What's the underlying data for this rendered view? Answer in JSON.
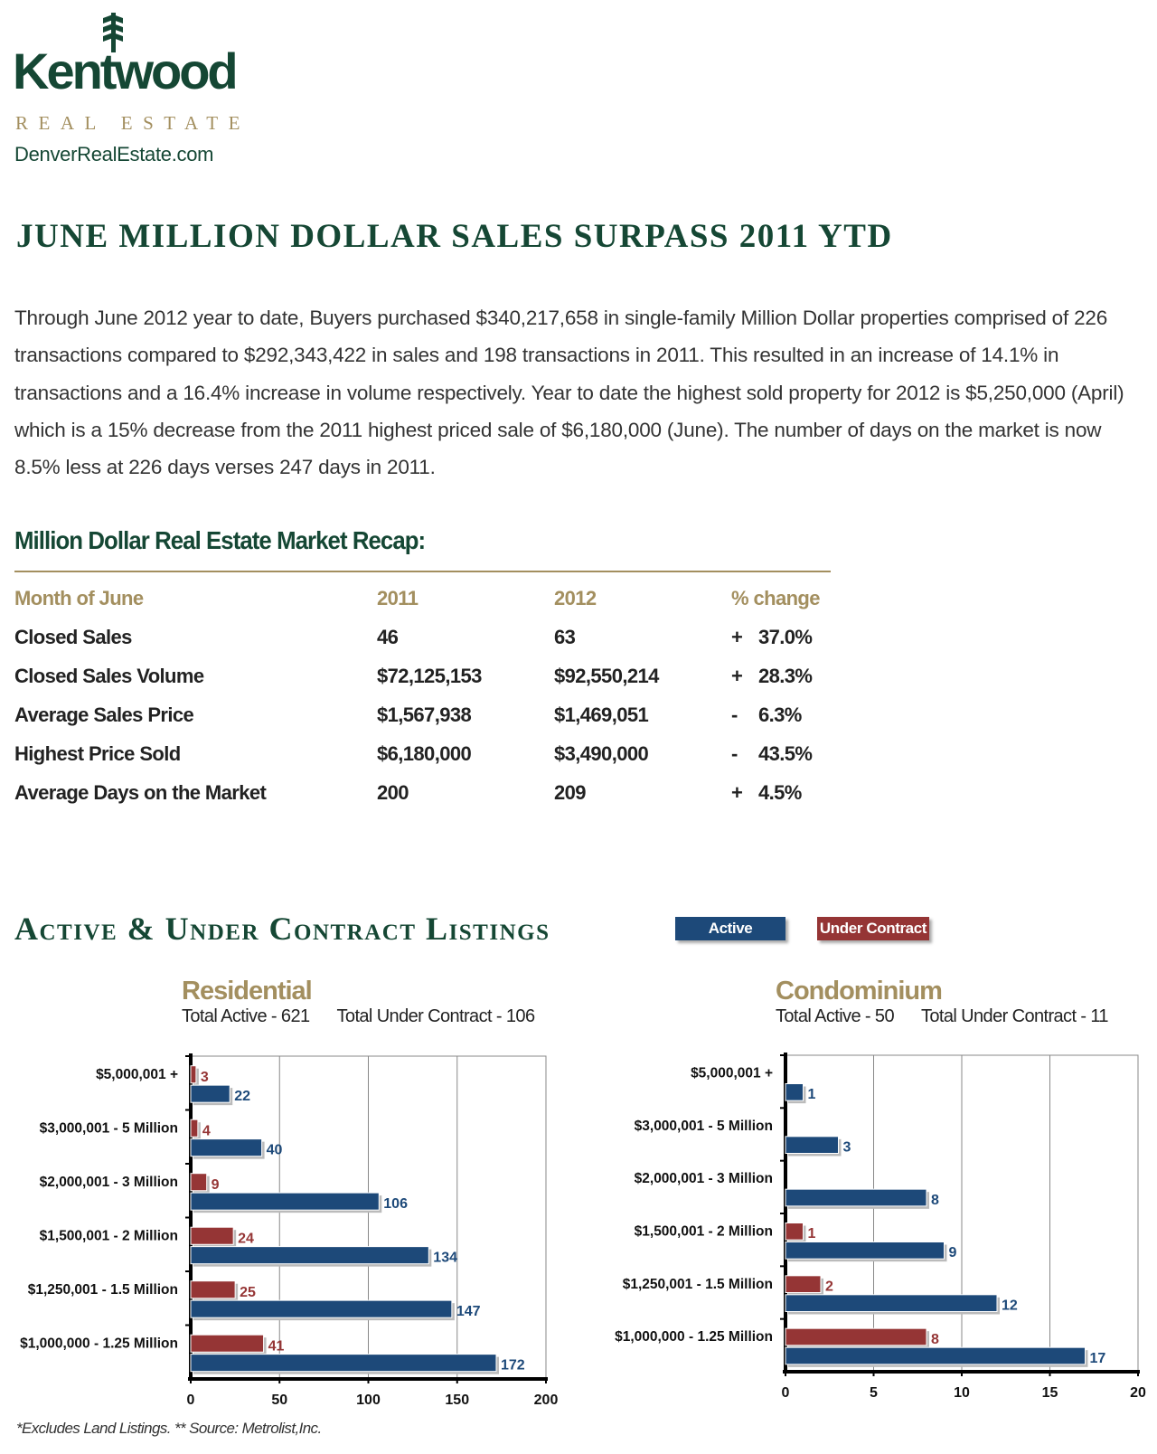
{
  "logo": {
    "brand": "Kentwood",
    "tagline": "REAL ESTATE",
    "url": "DenverRealEstate.com"
  },
  "title": "JUNE MILLION DOLLAR SALES SURPASS 2011 YTD",
  "paragraph": "Through June 2012 year to date, Buyers purchased $340,217,658 in single-family Million Dollar properties comprised of 226 transactions compared to $292,343,422 in sales and 198 transactions in 2011.  This resulted in an increase of 14.1% in transactions and a 16.4% increase in volume respectively.  Year to date the highest sold property for 2012 is $5,250,000 (April) which is a 15% decrease from the 2011 highest priced sale of $6,180,000 (June).  The number of days on the market is now 8.5% less at 226 days verses 247 days in 2011.",
  "recap": {
    "heading": "Million Dollar Real Estate Market Recap:",
    "headers": [
      "Month of June",
      "2011",
      "2012",
      "% change"
    ],
    "rows": [
      [
        "Closed Sales",
        "46",
        "63",
        "+",
        "37.0%"
      ],
      [
        "Closed Sales Volume",
        "$72,125,153",
        "$92,550,214",
        "+",
        "28.3%"
      ],
      [
        "Average Sales Price",
        "$1,567,938",
        "$1,469,051",
        "-",
        "6.3%"
      ],
      [
        "Highest Price Sold",
        "$6,180,000",
        "$3,490,000",
        "-",
        "43.5%"
      ],
      [
        "Average Days on the Market",
        "200",
        "209",
        "+",
        "4.5%"
      ]
    ]
  },
  "listings": {
    "heading": "Active & Under Contract Listings",
    "legend_active": "Active",
    "legend_under_contract": "Under Contract",
    "colors": {
      "active": "#1d4979",
      "under_contract": "#953535"
    },
    "footnote": "*Excludes Land Listings. ** Source: Metrolist,Inc."
  },
  "chart_data": [
    {
      "type": "bar",
      "title": "Residential",
      "total_active": "Total Active - 621",
      "total_under_contract": "Total Under Contract - 106",
      "categories": [
        "$5,000,001 +",
        "$3,000,001 - 5 Million",
        "$2,000,001 - 3 Million",
        "$1,500,001 - 2 Million",
        "$1,250,001 - 1.5 Million",
        "$1,000,000 - 1.25 Million"
      ],
      "series": [
        {
          "name": "Under Contract",
          "values": [
            3,
            4,
            9,
            24,
            25,
            41
          ]
        },
        {
          "name": "Active",
          "values": [
            22,
            40,
            106,
            134,
            147,
            172
          ]
        }
      ],
      "xlim": [
        0,
        200
      ],
      "xticks": [
        0,
        50,
        100,
        150,
        200
      ]
    },
    {
      "type": "bar",
      "title": "Condominium",
      "total_active": "Total Active - 50",
      "total_under_contract": "Total Under Contract - 11",
      "categories": [
        "$5,000,001 +",
        "$3,000,001 - 5 Million",
        "$2,000,001 - 3 Million",
        "$1,500,001 - 2 Million",
        "$1,250,001 - 1.5 Million",
        "$1,000,000 - 1.25 Million"
      ],
      "series": [
        {
          "name": "Under Contract",
          "values": [
            0,
            0,
            0,
            1,
            2,
            8
          ]
        },
        {
          "name": "Active",
          "values": [
            1,
            3,
            8,
            9,
            12,
            17
          ]
        }
      ],
      "xlim": [
        0,
        20
      ],
      "xticks": [
        0,
        5,
        10,
        15,
        20
      ]
    }
  ]
}
